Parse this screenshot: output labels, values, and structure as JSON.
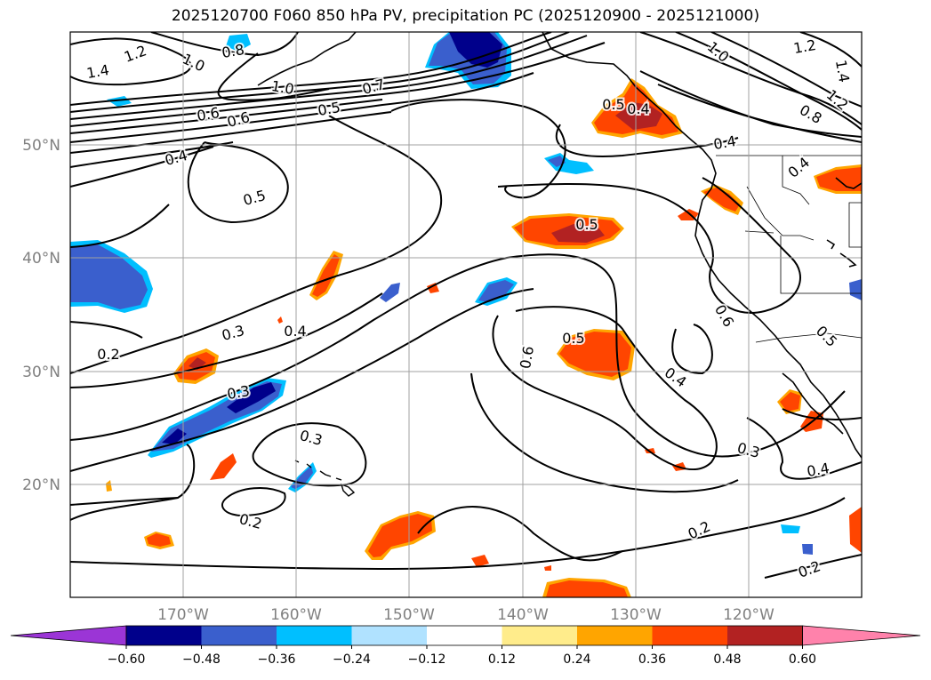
{
  "title": "2025120700 F060 850 hPa PV, precipitation PC (2025120900 - 2025121000)",
  "lat_labels": [
    "50°N",
    "40°N",
    "30°N",
    "20°N"
  ],
  "lon_labels": [
    "170°W",
    "160°W",
    "150°W",
    "140°W",
    "130°W",
    "120°W"
  ],
  "contour_labels": [
    "1.2",
    "1.4",
    "0.8",
    "1.0",
    "1.0",
    "1.2",
    "1.4",
    "1.2",
    "0.8",
    "1.0",
    "0.7",
    "0.6",
    "0.6",
    "0.5",
    "0.4",
    "0.5",
    "0.4",
    "0.4",
    "0.4",
    "0.5",
    "0.5",
    "0.3",
    "0.4",
    "0.2",
    "0.3",
    "0.5",
    "0.6",
    "0.4",
    "0.6",
    "0.5",
    "0.3",
    "0.3",
    "0.4",
    "0.2",
    "0.2",
    "0.2"
  ],
  "colorbar": {
    "ticks": [
      "−0.60",
      "−0.48",
      "−0.36",
      "−0.24",
      "−0.12",
      "0.12",
      "0.24",
      "0.36",
      "0.48",
      "0.60"
    ],
    "colors": [
      "#9b35d6",
      "#00008b",
      "#3a5fcd",
      "#00bfff",
      "#b0e2ff",
      "#ffffff",
      "#ffec8b",
      "#ffa500",
      "#ff4500",
      "#b22222",
      "#ff82ab"
    ]
  },
  "chart_data": {
    "type": "map",
    "lat_range": [
      10,
      60
    ],
    "lon_range": [
      -180,
      -110
    ],
    "grid": true,
    "colorbar_levels": [
      -0.6,
      -0.48,
      -0.36,
      -0.24,
      -0.12,
      0.12,
      0.24,
      0.36,
      0.48,
      0.6
    ]
  }
}
